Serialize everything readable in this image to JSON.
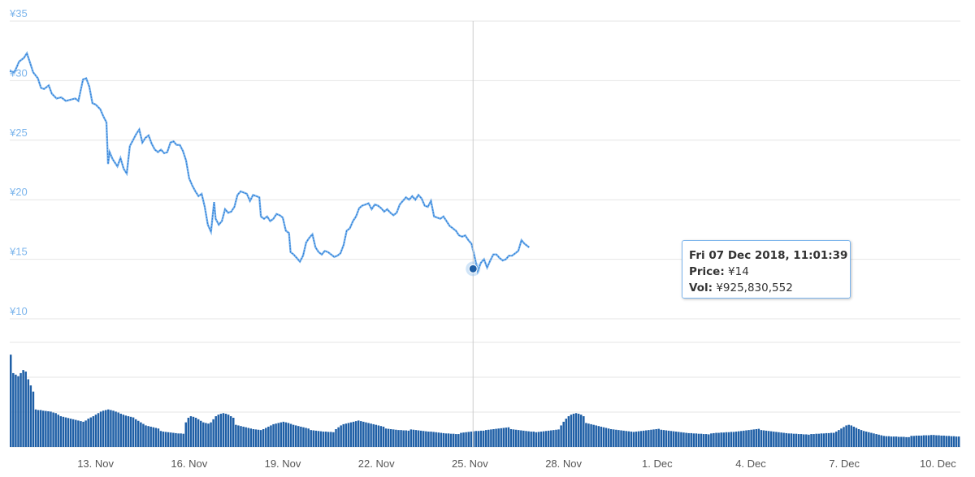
{
  "chart_data": {
    "type": "line",
    "series": [
      {
        "values": [
          [
            0.0,
            30.8
          ],
          [
            0.15,
            30.7
          ],
          [
            0.3,
            31.6
          ],
          [
            0.45,
            31.9
          ],
          [
            0.55,
            32.3
          ],
          [
            0.65,
            31.5
          ],
          [
            0.75,
            30.7
          ],
          [
            0.9,
            30.2
          ],
          [
            1.0,
            29.4
          ],
          [
            1.1,
            29.3
          ],
          [
            1.25,
            29.6
          ],
          [
            1.35,
            28.9
          ],
          [
            1.5,
            28.5
          ],
          [
            1.65,
            28.6
          ],
          [
            1.8,
            28.3
          ],
          [
            1.95,
            28.4
          ],
          [
            2.1,
            28.5
          ],
          [
            2.2,
            28.3
          ],
          [
            2.35,
            30.1
          ],
          [
            2.45,
            30.2
          ],
          [
            2.55,
            29.5
          ],
          [
            2.65,
            28.1
          ],
          [
            2.75,
            28.0
          ],
          [
            2.9,
            27.6
          ],
          [
            3.0,
            27.0
          ],
          [
            3.1,
            26.5
          ],
          [
            3.15,
            23.0
          ],
          [
            3.2,
            24.0
          ],
          [
            3.3,
            23.4
          ],
          [
            3.45,
            22.8
          ],
          [
            3.55,
            23.5
          ],
          [
            3.65,
            22.6
          ],
          [
            3.75,
            22.2
          ],
          [
            3.85,
            24.5
          ],
          [
            3.95,
            25.0
          ],
          [
            4.05,
            25.5
          ],
          [
            4.15,
            25.9
          ],
          [
            4.25,
            24.8
          ],
          [
            4.35,
            25.2
          ],
          [
            4.45,
            25.4
          ],
          [
            4.55,
            24.7
          ],
          [
            4.65,
            24.2
          ],
          [
            4.75,
            24.0
          ],
          [
            4.85,
            24.2
          ],
          [
            4.95,
            23.9
          ],
          [
            5.05,
            24.0
          ],
          [
            5.15,
            24.8
          ],
          [
            5.25,
            24.9
          ],
          [
            5.35,
            24.6
          ],
          [
            5.45,
            24.6
          ],
          [
            5.55,
            24.1
          ],
          [
            5.65,
            23.3
          ],
          [
            5.75,
            21.8
          ],
          [
            5.85,
            21.2
          ],
          [
            5.95,
            20.7
          ],
          [
            6.05,
            20.3
          ],
          [
            6.15,
            20.5
          ],
          [
            6.25,
            19.4
          ],
          [
            6.35,
            17.9
          ],
          [
            6.45,
            17.3
          ],
          [
            6.55,
            19.8
          ],
          [
            6.6,
            18.4
          ],
          [
            6.7,
            17.9
          ],
          [
            6.8,
            18.2
          ],
          [
            6.9,
            19.2
          ],
          [
            7.0,
            18.9
          ],
          [
            7.1,
            19.0
          ],
          [
            7.2,
            19.4
          ],
          [
            7.3,
            20.4
          ],
          [
            7.4,
            20.7
          ],
          [
            7.5,
            20.6
          ],
          [
            7.6,
            20.5
          ],
          [
            7.7,
            19.9
          ],
          [
            7.8,
            20.4
          ],
          [
            7.9,
            20.3
          ],
          [
            8.0,
            20.2
          ],
          [
            8.05,
            18.6
          ],
          [
            8.15,
            18.4
          ],
          [
            8.25,
            18.6
          ],
          [
            8.35,
            18.2
          ],
          [
            8.45,
            18.4
          ],
          [
            8.55,
            18.8
          ],
          [
            8.65,
            18.7
          ],
          [
            8.75,
            18.5
          ],
          [
            8.85,
            17.4
          ],
          [
            8.95,
            17.2
          ],
          [
            9.0,
            15.6
          ],
          [
            9.1,
            15.4
          ],
          [
            9.2,
            15.1
          ],
          [
            9.3,
            14.8
          ],
          [
            9.4,
            15.3
          ],
          [
            9.5,
            16.4
          ],
          [
            9.6,
            16.8
          ],
          [
            9.7,
            17.1
          ],
          [
            9.8,
            16.0
          ],
          [
            9.9,
            15.6
          ],
          [
            10.0,
            15.4
          ],
          [
            10.1,
            15.7
          ],
          [
            10.2,
            15.6
          ],
          [
            10.3,
            15.4
          ],
          [
            10.4,
            15.2
          ],
          [
            10.5,
            15.3
          ],
          [
            10.6,
            15.5
          ],
          [
            10.7,
            16.2
          ],
          [
            10.8,
            17.4
          ],
          [
            10.9,
            17.6
          ],
          [
            11.0,
            18.2
          ],
          [
            11.1,
            18.6
          ],
          [
            11.2,
            19.3
          ],
          [
            11.3,
            19.5
          ],
          [
            11.4,
            19.6
          ],
          [
            11.5,
            19.7
          ],
          [
            11.6,
            19.2
          ],
          [
            11.7,
            19.6
          ],
          [
            11.8,
            19.5
          ],
          [
            11.9,
            19.3
          ],
          [
            12.0,
            19.0
          ],
          [
            12.1,
            19.2
          ],
          [
            12.2,
            18.9
          ],
          [
            12.3,
            18.7
          ],
          [
            12.4,
            18.9
          ],
          [
            12.5,
            19.6
          ],
          [
            12.6,
            19.9
          ],
          [
            12.7,
            20.2
          ],
          [
            12.8,
            20.0
          ],
          [
            12.9,
            20.3
          ],
          [
            13.0,
            20.0
          ],
          [
            13.1,
            20.4
          ],
          [
            13.2,
            20.1
          ],
          [
            13.3,
            19.5
          ],
          [
            13.4,
            19.4
          ],
          [
            13.5,
            19.9
          ],
          [
            13.6,
            18.6
          ],
          [
            13.7,
            18.5
          ],
          [
            13.8,
            18.4
          ],
          [
            13.9,
            18.6
          ],
          [
            14.0,
            18.2
          ],
          [
            14.1,
            17.8
          ],
          [
            14.2,
            17.6
          ],
          [
            14.3,
            17.4
          ],
          [
            14.4,
            17.0
          ],
          [
            14.5,
            16.9
          ],
          [
            14.6,
            17.0
          ],
          [
            14.7,
            16.6
          ],
          [
            14.8,
            16.3
          ],
          [
            14.9,
            15.2
          ],
          [
            15.0,
            14.0
          ],
          [
            15.1,
            14.7
          ],
          [
            15.2,
            15.0
          ],
          [
            15.3,
            14.3
          ],
          [
            15.4,
            14.9
          ],
          [
            15.5,
            15.4
          ],
          [
            15.6,
            15.4
          ],
          [
            15.7,
            15.1
          ],
          [
            15.8,
            14.9
          ],
          [
            15.9,
            15.0
          ],
          [
            16.0,
            15.3
          ],
          [
            16.1,
            15.3
          ],
          [
            16.2,
            15.5
          ],
          [
            16.3,
            15.7
          ],
          [
            16.4,
            16.6
          ],
          [
            16.5,
            16.3
          ],
          [
            16.6,
            16.1
          ],
          [
            16.65,
            16.0
          ]
        ]
      }
    ],
    "volume": [
      3.0,
      2.4,
      2.35,
      2.3,
      2.4,
      2.5,
      2.45,
      2.2,
      2.0,
      1.8,
      1.22,
      1.2,
      1.2,
      1.18,
      1.17,
      1.16,
      1.15,
      1.12,
      1.1,
      1.05,
      1.0,
      0.98,
      0.96,
      0.94,
      0.92,
      0.9,
      0.88,
      0.86,
      0.84,
      0.82,
      0.86,
      0.92,
      0.96,
      1.0,
      1.05,
      1.1,
      1.15,
      1.18,
      1.2,
      1.22,
      1.2,
      1.18,
      1.15,
      1.12,
      1.08,
      1.05,
      1.02,
      1.0,
      0.98,
      0.96,
      0.9,
      0.85,
      0.8,
      0.75,
      0.7,
      0.68,
      0.66,
      0.64,
      0.62,
      0.6,
      0.52,
      0.5,
      0.49,
      0.48,
      0.47,
      0.46,
      0.45,
      0.44,
      0.44,
      0.43,
      0.8,
      0.95,
      1.0,
      0.98,
      0.95,
      0.9,
      0.85,
      0.8,
      0.78,
      0.76,
      0.8,
      0.9,
      1.0,
      1.05,
      1.08,
      1.1,
      1.08,
      1.05,
      1.0,
      0.95,
      0.72,
      0.7,
      0.68,
      0.66,
      0.64,
      0.62,
      0.6,
      0.58,
      0.57,
      0.56,
      0.55,
      0.58,
      0.62,
      0.66,
      0.7,
      0.74,
      0.76,
      0.78,
      0.8,
      0.82,
      0.8,
      0.78,
      0.75,
      0.72,
      0.7,
      0.68,
      0.66,
      0.64,
      0.62,
      0.6,
      0.55,
      0.54,
      0.53,
      0.52,
      0.51,
      0.5,
      0.5,
      0.49,
      0.49,
      0.48,
      0.58,
      0.64,
      0.7,
      0.74,
      0.76,
      0.78,
      0.8,
      0.82,
      0.84,
      0.86,
      0.84,
      0.82,
      0.8,
      0.78,
      0.76,
      0.74,
      0.72,
      0.7,
      0.68,
      0.66,
      0.6,
      0.59,
      0.58,
      0.57,
      0.56,
      0.55,
      0.55,
      0.54,
      0.54,
      0.53,
      0.57,
      0.56,
      0.55,
      0.54,
      0.53,
      0.52,
      0.51,
      0.5,
      0.5,
      0.49,
      0.48,
      0.47,
      0.46,
      0.45,
      0.44,
      0.44,
      0.43,
      0.43,
      0.42,
      0.42,
      0.46,
      0.47,
      0.48,
      0.49,
      0.5,
      0.51,
      0.52,
      0.52,
      0.53,
      0.53,
      0.55,
      0.56,
      0.57,
      0.58,
      0.59,
      0.6,
      0.61,
      0.62,
      0.63,
      0.64,
      0.58,
      0.57,
      0.56,
      0.55,
      0.54,
      0.53,
      0.52,
      0.51,
      0.5,
      0.5,
      0.48,
      0.49,
      0.5,
      0.51,
      0.52,
      0.53,
      0.54,
      0.55,
      0.56,
      0.57,
      0.7,
      0.82,
      0.92,
      1.0,
      1.05,
      1.08,
      1.1,
      1.08,
      1.05,
      1.0,
      0.78,
      0.76,
      0.74,
      0.72,
      0.7,
      0.68,
      0.66,
      0.64,
      0.62,
      0.6,
      0.58,
      0.57,
      0.56,
      0.55,
      0.54,
      0.53,
      0.52,
      0.51,
      0.5,
      0.49,
      0.5,
      0.51,
      0.52,
      0.53,
      0.54,
      0.55,
      0.56,
      0.57,
      0.58,
      0.59,
      0.56,
      0.55,
      0.54,
      0.53,
      0.52,
      0.51,
      0.5,
      0.49,
      0.48,
      0.47,
      0.46,
      0.45,
      0.45,
      0.44,
      0.44,
      0.43,
      0.43,
      0.42,
      0.42,
      0.41,
      0.44,
      0.45,
      0.46,
      0.46,
      0.47,
      0.47,
      0.48,
      0.48,
      0.49,
      0.49,
      0.5,
      0.51,
      0.52,
      0.53,
      0.54,
      0.55,
      0.56,
      0.57,
      0.58,
      0.59,
      0.55,
      0.54,
      0.53,
      0.52,
      0.51,
      0.5,
      0.49,
      0.48,
      0.47,
      0.46,
      0.45,
      0.44,
      0.44,
      0.43,
      0.43,
      0.42,
      0.42,
      0.41,
      0.41,
      0.4,
      0.42,
      0.42,
      0.43,
      0.43,
      0.44,
      0.44,
      0.45,
      0.45,
      0.46,
      0.46,
      0.5,
      0.55,
      0.6,
      0.65,
      0.7,
      0.72,
      0.7,
      0.66,
      0.62,
      0.58,
      0.55,
      0.52,
      0.5,
      0.48,
      0.46,
      0.44,
      0.42,
      0.4,
      0.38,
      0.36,
      0.35,
      0.35,
      0.34,
      0.34,
      0.34,
      0.33,
      0.33,
      0.33,
      0.32,
      0.32,
      0.36,
      0.36,
      0.37,
      0.37,
      0.37,
      0.38,
      0.38,
      0.38,
      0.39,
      0.39,
      0.38,
      0.38,
      0.37,
      0.37,
      0.36,
      0.36,
      0.35,
      0.35,
      0.34,
      0.34
    ],
    "ylim": [
      10,
      35
    ],
    "y_ticks": [
      "¥10",
      "¥15",
      "¥20",
      "¥25",
      "¥30",
      "¥35"
    ],
    "x_ticks": [
      "13. Nov",
      "16. Nov",
      "19. Nov",
      "22. Nov",
      "25. Nov",
      "28. Nov",
      "1. Dec",
      "4. Dec",
      "7. Dec",
      "10. Dec"
    ],
    "grid": true,
    "line_color": "#2f7ed8",
    "volume_color": "#1f5fa6"
  },
  "tooltip": {
    "date": "Fri 07 Dec 2018, 11:01:39",
    "price_label": "Price:",
    "price_value": "¥14",
    "vol_label": "Vol:",
    "vol_value": "¥925,830,552"
  },
  "colors": {
    "axis_label": "#7cb5ec",
    "grid": "#e6e6e6",
    "tooltip_border": "#7cb5ec"
  }
}
